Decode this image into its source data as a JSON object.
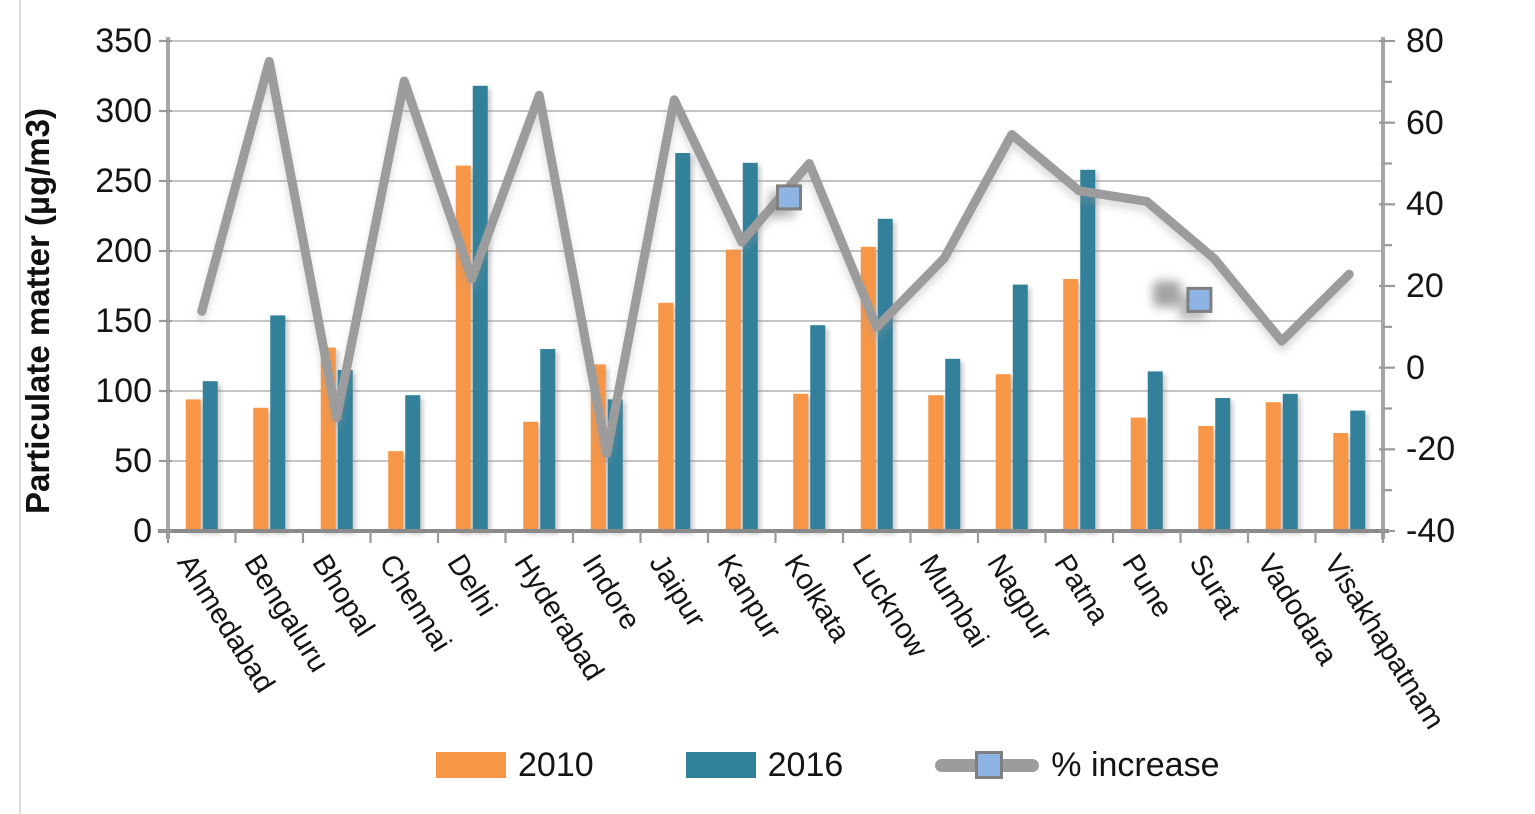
{
  "chart_data": {
    "type": "combo-bar-line",
    "title": "",
    "categories": [
      "Ahmedabad",
      "Bengaluru",
      "Bhopal",
      "Chennai",
      "Delhi",
      "Hyderabad",
      "Indore",
      "Jaipur",
      "Kanpur",
      "Kolkata",
      "Lucknow",
      "Mumbai",
      "Nagpur",
      "Patna",
      "Pune",
      "Surat",
      "Vadodara",
      "Visakhapatnam"
    ],
    "series": [
      {
        "name": "2010",
        "type": "bar",
        "axis": "left",
        "color": "#F79646",
        "values": [
          94,
          88,
          131,
          57,
          261,
          78,
          119,
          163,
          201,
          98,
          203,
          97,
          112,
          180,
          81,
          75,
          92,
          70
        ]
      },
      {
        "name": "2016",
        "type": "bar",
        "axis": "left",
        "color": "#30809A",
        "values": [
          107,
          154,
          115,
          97,
          318,
          130,
          94,
          270,
          263,
          147,
          223,
          123,
          176,
          258,
          114,
          95,
          98,
          86
        ]
      },
      {
        "name": "% increase",
        "type": "line",
        "axis": "right",
        "color": "#9C9C9C",
        "values": [
          13.8,
          75.0,
          -12.2,
          70.2,
          21.8,
          66.7,
          -21.0,
          65.6,
          30.8,
          50.0,
          9.9,
          26.8,
          57.1,
          43.3,
          40.7,
          26.7,
          6.5,
          22.9
        ]
      }
    ],
    "left_axis": {
      "label": "Particulate matter (µg/m3)",
      "min": 0,
      "max": 350,
      "step": 50,
      "tick_labels": [
        "350",
        "300",
        "250",
        "200",
        "150",
        "100",
        "50",
        "0"
      ]
    },
    "right_axis": {
      "min": -40,
      "max": 80,
      "step": 20,
      "tick_labels": [
        "80",
        "60",
        "40",
        "20",
        "0",
        "-20",
        "-40"
      ]
    },
    "grid": true,
    "legend_position": "bottom",
    "line_point_markers": [
      {
        "x_index": 9.2,
        "value": 41.7,
        "shape": "square",
        "fill": "#8DB4E2",
        "border": "#7F7F7F"
      },
      {
        "x_index": 15.28,
        "value": 16.6,
        "shape": "square",
        "fill": "#8DB4E2",
        "border": "#7F7F7F"
      }
    ],
    "smudge_artifact": {
      "x_index": 14.8,
      "value": 17.8
    }
  },
  "legend": {
    "items": [
      {
        "label": "2010"
      },
      {
        "label": "2016"
      },
      {
        "label": "% increase"
      }
    ]
  },
  "colors": {
    "bar_2010": "#F79646",
    "bar_2016": "#30809A",
    "line": "#9C9C9C",
    "gridline": "#B0B0B0",
    "axis_side": "#A6A6A6",
    "axis_bottom": "#8A8A8A",
    "tick": "#999999",
    "text": "#141414",
    "marker_fill": "#8DB4E2",
    "marker_border": "#7F7F7F"
  }
}
